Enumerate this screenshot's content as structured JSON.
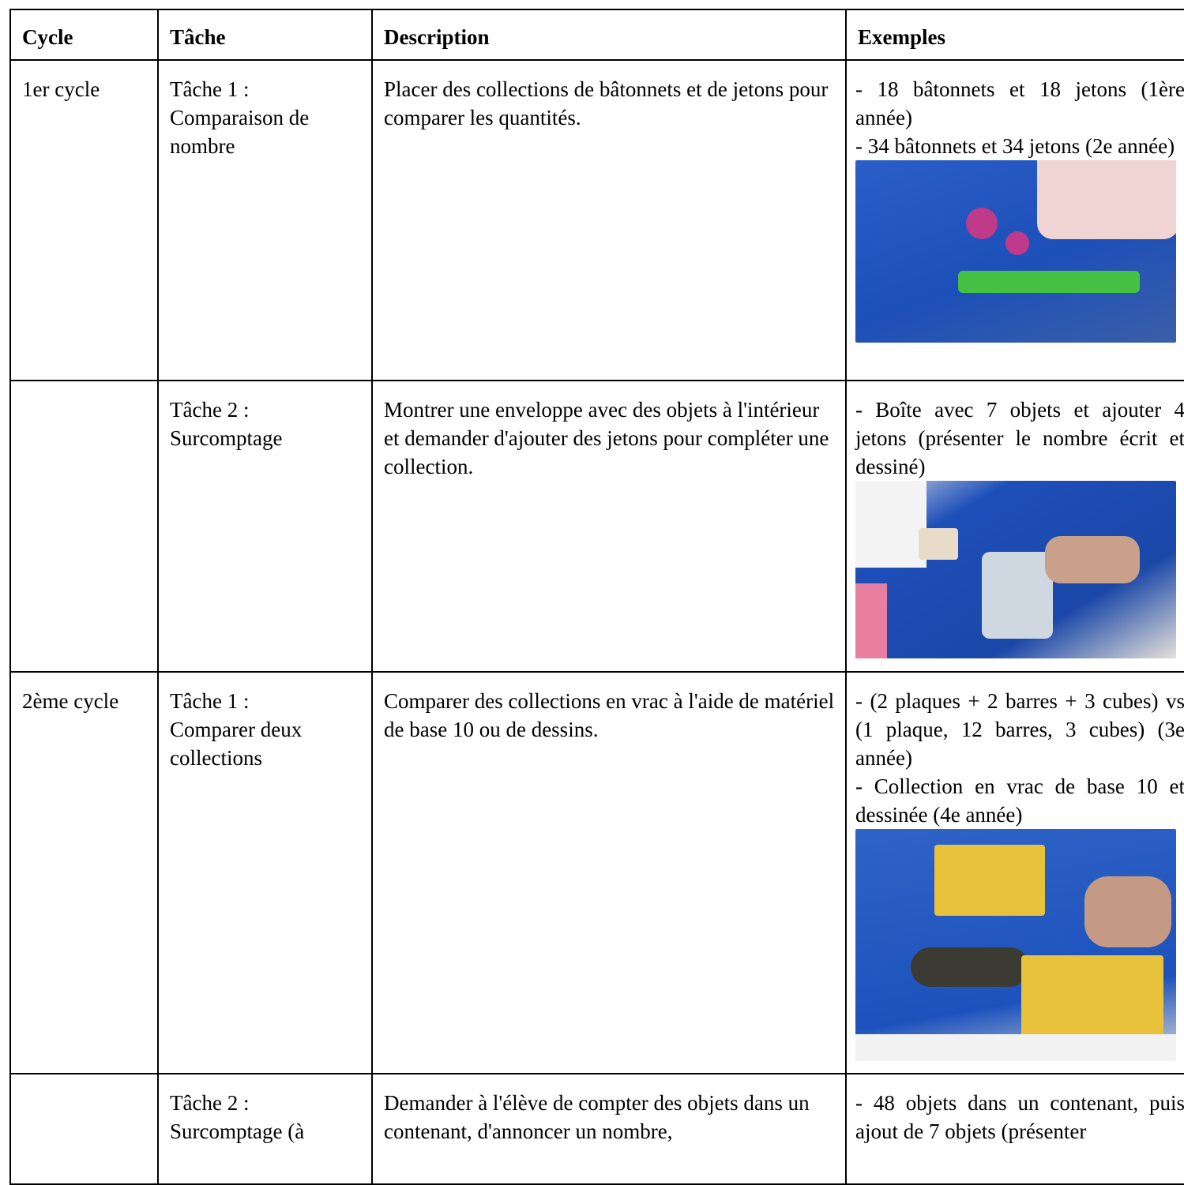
{
  "table": {
    "headers": [
      "Cycle",
      "Tâche",
      "Description",
      "Exemples"
    ],
    "rows": [
      {
        "cycle": "1er cycle",
        "task": [
          "Tâche 1 :",
          "Comparaison de nombre"
        ],
        "description": "Placer des collections de bâtonnets et de jetons pour comparer les quantités.",
        "examples": [
          "- 18 bâtonnets et 18 jetons (1ère année)",
          "- 34 bâtonnets et 34 jetons (2e année)"
        ]
      },
      {
        "task": [
          "Tâche 2 :",
          "Surcomptage"
        ],
        "description": "Montrer une enveloppe avec des objets à l'intérieur et demander d'ajouter des jetons pour compléter une collection.",
        "examples": [
          "- Boîte avec 7 objets et ajouter 4 jetons (présenter le nombre écrit et dessiné)"
        ]
      },
      {
        "cycle": "2ème cycle",
        "task": [
          "Tâche 1 :",
          "Comparer deux collections"
        ],
        "description": "Comparer des collections en vrac à l'aide de matériel de base 10 ou de dessins.",
        "examples": [
          "- (2 plaques + 2 barres + 3 cubes) vs (1 plaque, 12 barres, 3 cubes) (3e année)",
          "- Collection en vrac de base 10 et dessinée (4e année)"
        ]
      },
      {
        "task": [
          "Tâche 2 :",
          "Surcomptage (à"
        ],
        "description": "Demander à l'élève de compter des objets dans un contenant, d'annoncer un nombre,",
        "examples": [
          "- 48 objets dans un contenant, puis ajout de 7 objets (présenter"
        ]
      }
    ]
  }
}
